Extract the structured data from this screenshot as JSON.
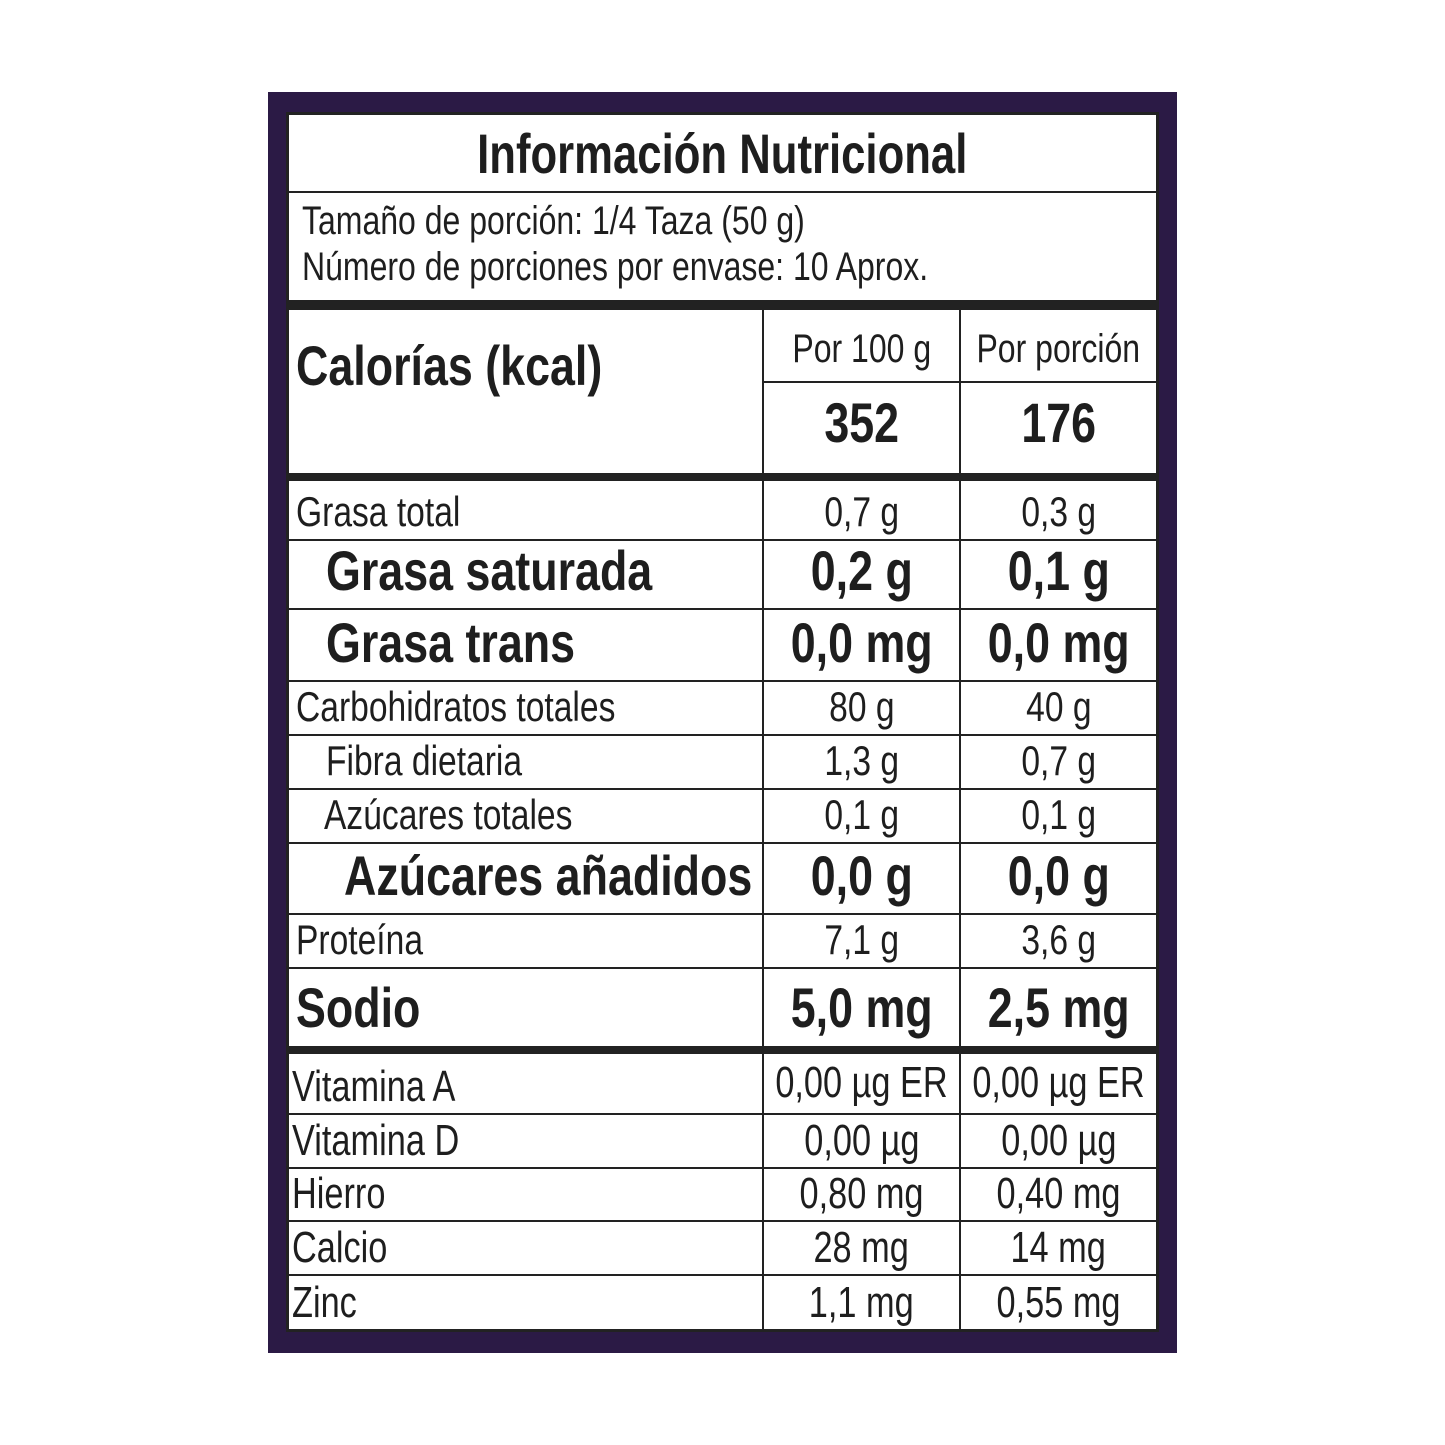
{
  "colors": {
    "frame": "#2b1a45",
    "lines": "#222222",
    "text": "#1e1e1e"
  },
  "title": "Información Nutricional",
  "serving": {
    "size": "Tamaño de porción: 1/4 Taza (50 g)",
    "servings": "Número de porciones por envase: 10 Aprox."
  },
  "calories": {
    "label": "Calorías (kcal)",
    "col1_header": "Por 100 g",
    "col2_header": "Por porción",
    "per100": "352",
    "per_portion": "176"
  },
  "nutrients": [
    {
      "label": "Grasa total",
      "per100": "0,7 g",
      "per_portion": "0,3 g",
      "bold": false
    },
    {
      "label": "Grasa saturada",
      "per100": "0,2 g",
      "per_portion": "0,1 g",
      "bold": true
    },
    {
      "label": "Grasa trans",
      "per100": "0,0 mg",
      "per_portion": "0,0 mg",
      "bold": true
    },
    {
      "label": "Carbohidratos totales",
      "per100": "80 g",
      "per_portion": "40 g",
      "bold": false
    },
    {
      "label": "Fibra dietaria",
      "per100": "1,3 g",
      "per_portion": "0,7 g",
      "bold": false
    },
    {
      "label": "Azúcares totales",
      "per100": "0,1 g",
      "per_portion": "0,1 g",
      "bold": false
    },
    {
      "label": "Azúcares añadidos",
      "per100": "0,0 g",
      "per_portion": "0,0 g",
      "bold": true
    },
    {
      "label": "Proteína",
      "per100": "7,1 g",
      "per_portion": "3,6 g",
      "bold": false
    },
    {
      "label": "Sodio",
      "per100": "5,0 mg",
      "per_portion": "2,5 mg",
      "bold": true
    }
  ],
  "vitamins": [
    {
      "label": "Vitamina A",
      "per100": "0,00 µg ER",
      "per_portion": "0,00 µg ER"
    },
    {
      "label": "Vitamina D",
      "per100": "0,00 µg",
      "per_portion": "0,00 µg"
    },
    {
      "label": "Hierro",
      "per100": "0,80 mg",
      "per_portion": "0,40 mg"
    },
    {
      "label": "Calcio",
      "per100": "28 mg",
      "per_portion": "14 mg"
    },
    {
      "label": "Zinc",
      "per100": "1,1 mg",
      "per_portion": "0,55 mg"
    }
  ]
}
